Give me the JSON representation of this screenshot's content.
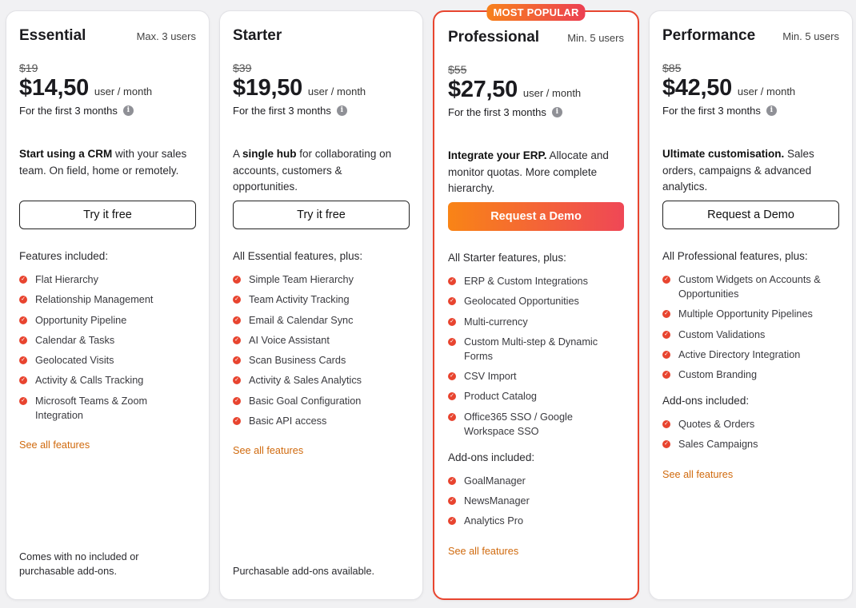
{
  "plans": [
    {
      "name": "Essential",
      "users": "Max. 3 users",
      "old_price": "$19",
      "price": "$14,50",
      "unit": "user / month",
      "first": "For the first 3 months",
      "desc_bold": "Start using a CRM",
      "desc_rest": " with your sales team. On field, home or remotely.",
      "cta": "Try it free",
      "features_title": "Features included:",
      "features": [
        "Flat Hierarchy",
        "Relationship Management",
        "Opportunity Pipeline",
        "Calendar & Tasks",
        "Geolocated Visits",
        "Activity & Calls Tracking",
        "Microsoft Teams & Zoom Integration"
      ],
      "see_all": "See all features",
      "footer": "Comes with no included or purchasable add-ons."
    },
    {
      "name": "Starter",
      "users": "",
      "old_price": "$39",
      "price": "$19,50",
      "unit": "user / month",
      "first": "For the first 3 months",
      "desc_pre": "A ",
      "desc_bold": "single hub",
      "desc_rest": " for collaborating on accounts, customers & opportunities.",
      "cta": "Try it free",
      "features_title": "All Essential features, plus:",
      "features": [
        "Simple Team Hierarchy",
        "Team Activity Tracking",
        "Email & Calendar Sync",
        "AI Voice Assistant",
        "Scan Business Cards",
        "Activity & Sales Analytics",
        "Basic Goal Configuration",
        "Basic API access"
      ],
      "see_all": "See all features",
      "footer": "Purchasable add-ons available."
    },
    {
      "badge": "MOST POPULAR",
      "name": "Professional",
      "users": "Min. 5 users",
      "old_price": "$55",
      "price": "$27,50",
      "unit": "user / month",
      "first": "For the first 3 months",
      "desc_bold": "Integrate your ERP.",
      "desc_rest": " Allocate and monitor quotas. More complete hierarchy.",
      "cta": "Request a Demo",
      "features_title": "All Starter features, plus:",
      "features": [
        "ERP & Custom Integrations",
        "Geolocated Opportunities",
        "Multi-currency",
        "Custom Multi-step & Dynamic Forms",
        "CSV Import",
        "Product Catalog",
        "Office365 SSO / Google Workspace SSO"
      ],
      "addons_title": "Add-ons included:",
      "addons": [
        "GoalManager",
        "NewsManager",
        "Analytics Pro"
      ],
      "see_all": "See all features"
    },
    {
      "name": "Performance",
      "users": "Min. 5 users",
      "old_price": "$85",
      "price": "$42,50",
      "unit": "user / month",
      "first": "For the first 3 months",
      "desc_bold": "Ultimate customisation.",
      "desc_rest": " Sales orders, campaigns & advanced analytics.",
      "cta": "Request a Demo",
      "features_title": "All Professional features, plus:",
      "features": [
        "Custom Widgets on Accounts & Opportunities",
        "Multiple Opportunity Pipelines",
        "Custom Validations",
        "Active Directory Integration",
        "Custom Branding"
      ],
      "addons_title": "Add-ons included:",
      "addons": [
        "Quotes & Orders",
        "Sales Campaigns"
      ],
      "see_all": "See all features"
    }
  ],
  "icons": {
    "check": "check-circle-icon",
    "info": "info-icon"
  },
  "colors": {
    "accent": "#e8442f",
    "link": "#d06a0e",
    "gradient_start": "#f98416",
    "gradient_end": "#ef4756"
  }
}
